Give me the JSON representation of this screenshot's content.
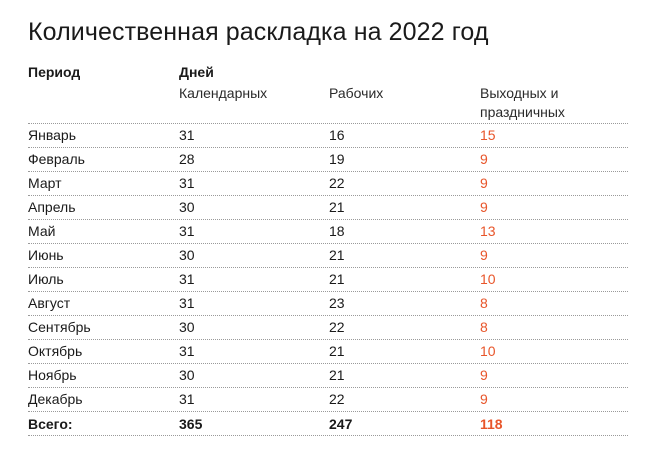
{
  "title": "Количественная раскладка на 2022 год",
  "header": {
    "period": "Период",
    "days": "Дней",
    "calendar": "Календарных",
    "working": "Рабочих",
    "weekend": "Выходных и праздничных"
  },
  "rows": [
    {
      "month": "Январь",
      "calendar": "31",
      "working": "16",
      "weekend": "15"
    },
    {
      "month": "Февраль",
      "calendar": "28",
      "working": "19",
      "weekend": "9"
    },
    {
      "month": "Март",
      "calendar": "31",
      "working": "22",
      "weekend": "9"
    },
    {
      "month": "Апрель",
      "calendar": "30",
      "working": "21",
      "weekend": "9"
    },
    {
      "month": "Май",
      "calendar": "31",
      "working": "18",
      "weekend": "13"
    },
    {
      "month": "Июнь",
      "calendar": "30",
      "working": "21",
      "weekend": "9"
    },
    {
      "month": "Июль",
      "calendar": "31",
      "working": "21",
      "weekend": "10"
    },
    {
      "month": "Август",
      "calendar": "31",
      "working": "23",
      "weekend": "8"
    },
    {
      "month": "Сентябрь",
      "calendar": "30",
      "working": "22",
      "weekend": "8"
    },
    {
      "month": "Октябрь",
      "calendar": "31",
      "working": "21",
      "weekend": "10"
    },
    {
      "month": "Ноябрь",
      "calendar": "30",
      "working": "21",
      "weekend": "9"
    },
    {
      "month": "Декабрь",
      "calendar": "31",
      "working": "22",
      "weekend": "9"
    }
  ],
  "total": {
    "label": "Всего:",
    "calendar": "365",
    "working": "247",
    "weekend": "118"
  },
  "colors": {
    "accent": "#e8552a",
    "text": "#1a1a1a",
    "rule": "#9a9a9a"
  }
}
